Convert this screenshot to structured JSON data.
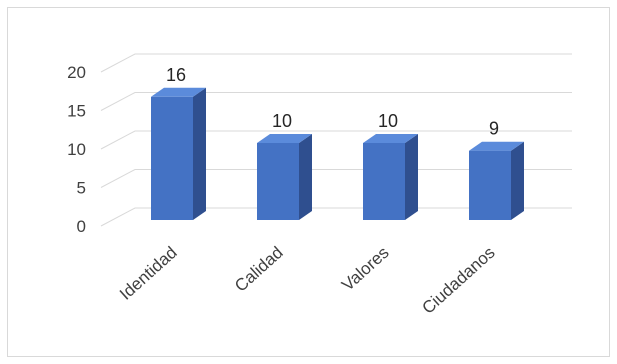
{
  "chart_data": {
    "type": "bar",
    "style": "3d-column",
    "categories": [
      "Identidad",
      "Calidad",
      "Valores",
      "Ciudadanos"
    ],
    "values": [
      16,
      10,
      10,
      9
    ],
    "data_labels": [
      "16",
      "10",
      "10",
      "9"
    ],
    "title": "",
    "xlabel": "",
    "ylabel": "",
    "ylim": [
      0,
      20
    ],
    "yticks": [
      0,
      5,
      10,
      15,
      20
    ],
    "grid": true,
    "legend": "none",
    "colors": {
      "bar_front": "#4472C4",
      "bar_top": "#5B8BDB",
      "bar_side": "#2F4F8F",
      "grid": "#d9d9d9",
      "text": "#404040"
    }
  }
}
